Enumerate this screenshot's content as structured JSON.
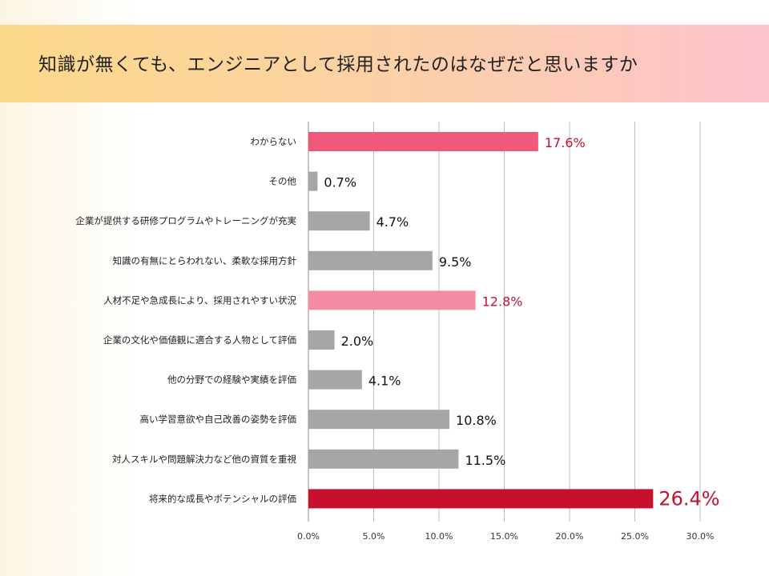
{
  "header": {
    "title": "知識が無くても、エンジニアとして採用されたのはなぜだと思いますか"
  },
  "chart_data": {
    "type": "bar",
    "orientation": "horizontal",
    "title": "知識が無くても、エンジニアとして採用されたのはなぜだと思いますか",
    "xlabel": "",
    "ylabel": "",
    "xlim": [
      0,
      30
    ],
    "grid": true,
    "categories": [
      "わからない",
      "その他",
      "企業が提供する研修プログラムやトレーニングが充実",
      "知識の有無にとらわれない、柔軟な採用方針",
      "人材不足や急成長により、採用されやすい状況",
      "企業の文化や価値観に適合する人物として評価",
      "他の分野での経験や実績を評価",
      "高い学習意欲や自己改善の姿勢を評価",
      "対人スキルや問題解決力など他の資質を重視",
      "将来的な成長やポテンシャルの評価"
    ],
    "values": [
      17.6,
      0.7,
      4.7,
      9.5,
      12.8,
      2.0,
      4.1,
      10.8,
      11.5,
      26.4
    ],
    "value_labels": [
      "17.6%",
      "0.7%",
      "4.7%",
      "9.5%",
      "12.8%",
      "2.0%",
      "4.1%",
      "10.8%",
      "11.5%",
      "26.4%"
    ],
    "bar_colors": [
      "#f0597a",
      "#a6a6a6",
      "#a6a6a6",
      "#a6a6a6",
      "#f48da3",
      "#a6a6a6",
      "#a6a6a6",
      "#a6a6a6",
      "#a6a6a6",
      "#c8102e"
    ],
    "label_colors": [
      "#c8102e",
      "#111111",
      "#111111",
      "#111111",
      "#c8102e",
      "#111111",
      "#111111",
      "#111111",
      "#111111",
      "#c8102e"
    ],
    "emphasis": [
      false,
      false,
      false,
      false,
      false,
      false,
      false,
      false,
      false,
      true
    ],
    "x_ticks": [
      0,
      5,
      10,
      15,
      20,
      25,
      30
    ],
    "x_tick_labels": [
      "0.0%",
      "5.0%",
      "10.0%",
      "15.0%",
      "20.0%",
      "25.0%",
      "30.0%"
    ]
  }
}
